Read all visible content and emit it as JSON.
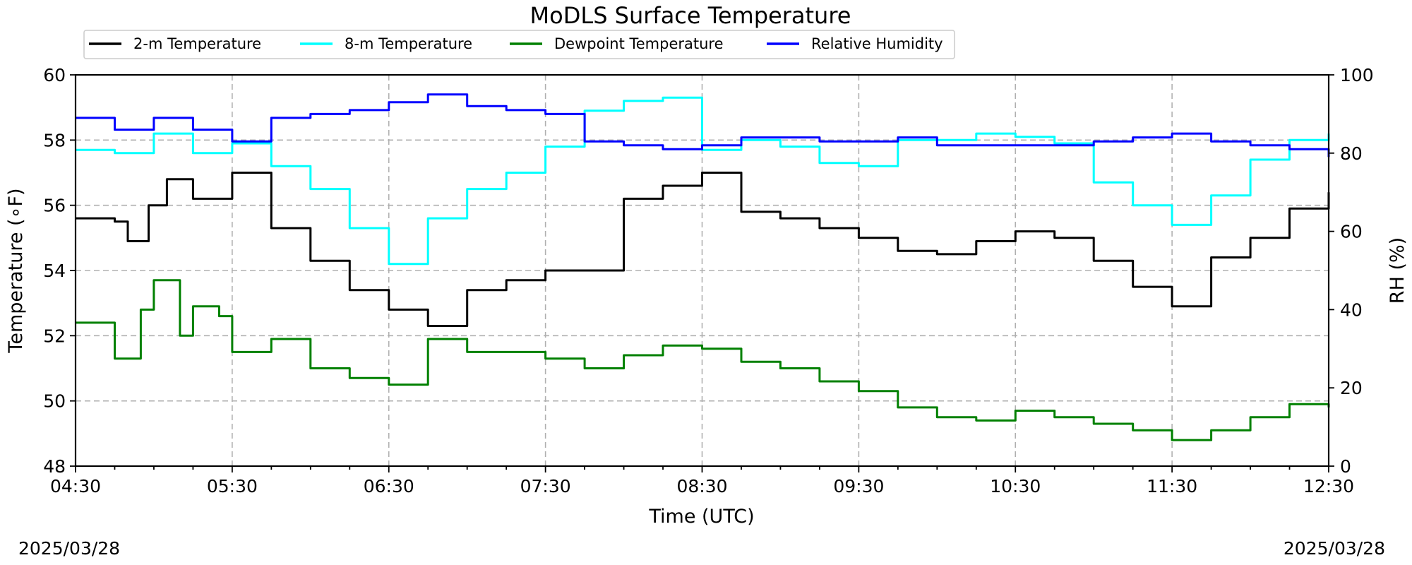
{
  "chart_data": {
    "type": "line",
    "title": "MoDLS Surface Temperature",
    "xlabel": "Time (UTC)",
    "ylabel": "Temperature ($^\\circ$F)",
    "ylabel_display": "Temperature (∘F)",
    "y2label": "RH (%)",
    "ylim": [
      48,
      60
    ],
    "y2lim": [
      0,
      100
    ],
    "xlim": [
      "04:30",
      "12:30"
    ],
    "x_ticks": [
      "04:30",
      "05:30",
      "06:30",
      "07:30",
      "08:30",
      "09:30",
      "10:30",
      "11:30",
      "12:30"
    ],
    "y_ticks": [
      48,
      50,
      52,
      54,
      56,
      58,
      60
    ],
    "y2_ticks": [
      0,
      20,
      40,
      60,
      80,
      100
    ],
    "grid": true,
    "legend_placement": "top, above plot",
    "date_left": "2025/03/28",
    "date_right": "2025/03/28",
    "series": [
      {
        "name": "2-m Temperature",
        "axis": "left",
        "color": "#000000",
        "x": [
          "04:30",
          "04:45",
          "04:50",
          "04:58",
          "05:05",
          "05:15",
          "05:30",
          "05:45",
          "06:00",
          "06:15",
          "06:30",
          "06:45",
          "07:00",
          "07:15",
          "07:30",
          "07:45",
          "08:00",
          "08:15",
          "08:30",
          "08:45",
          "09:00",
          "09:15",
          "09:30",
          "09:45",
          "10:00",
          "10:15",
          "10:30",
          "10:45",
          "11:00",
          "11:15",
          "11:30",
          "11:45",
          "12:00",
          "12:15",
          "12:30"
        ],
        "y": [
          55.6,
          55.5,
          54.9,
          56.0,
          56.8,
          56.2,
          57.0,
          55.3,
          54.3,
          53.4,
          52.8,
          52.3,
          53.4,
          53.7,
          54.0,
          54.0,
          56.2,
          56.6,
          57.0,
          55.8,
          55.6,
          55.3,
          55.0,
          54.6,
          54.5,
          54.9,
          55.2,
          55.0,
          54.3,
          53.5,
          52.9,
          54.4,
          55.0,
          55.9,
          56.4
        ]
      },
      {
        "name": "8-m Temperature",
        "axis": "left",
        "color": "#00ffff",
        "x": [
          "04:30",
          "04:45",
          "05:00",
          "05:15",
          "05:30",
          "05:45",
          "06:00",
          "06:15",
          "06:30",
          "06:45",
          "07:00",
          "07:15",
          "07:30",
          "07:45",
          "08:00",
          "08:15",
          "08:30",
          "08:45",
          "09:00",
          "09:15",
          "09:30",
          "09:45",
          "10:00",
          "10:15",
          "10:30",
          "10:45",
          "11:00",
          "11:15",
          "11:30",
          "11:45",
          "12:00",
          "12:15",
          "12:30"
        ],
        "y": [
          57.7,
          57.6,
          58.2,
          57.6,
          57.9,
          57.2,
          56.5,
          55.3,
          54.2,
          55.6,
          56.5,
          57.0,
          57.8,
          58.9,
          59.2,
          59.3,
          57.7,
          58.0,
          57.8,
          57.3,
          57.2,
          58.0,
          58.0,
          58.2,
          58.1,
          57.9,
          56.7,
          56.0,
          55.4,
          56.3,
          57.4,
          58.0,
          58.2
        ]
      },
      {
        "name": "Dewpoint Temperature",
        "axis": "left",
        "color": "#008000",
        "x": [
          "04:30",
          "04:45",
          "04:55",
          "05:00",
          "05:10",
          "05:15",
          "05:25",
          "05:30",
          "05:45",
          "06:00",
          "06:15",
          "06:30",
          "06:45",
          "07:00",
          "07:15",
          "07:30",
          "07:45",
          "08:00",
          "08:15",
          "08:30",
          "08:45",
          "09:00",
          "09:15",
          "09:30",
          "09:45",
          "10:00",
          "10:15",
          "10:30",
          "10:45",
          "11:00",
          "11:15",
          "11:30",
          "11:45",
          "12:00",
          "12:15",
          "12:30"
        ],
        "y": [
          52.4,
          51.3,
          52.8,
          53.7,
          52.0,
          52.9,
          52.6,
          51.5,
          51.9,
          51.0,
          50.7,
          50.5,
          51.9,
          51.5,
          51.5,
          51.3,
          51.0,
          51.4,
          51.7,
          51.6,
          51.2,
          51.0,
          50.6,
          50.3,
          49.8,
          49.5,
          49.4,
          49.7,
          49.5,
          49.3,
          49.1,
          48.8,
          49.1,
          49.5,
          49.9,
          49.8
        ]
      },
      {
        "name": "Relative Humidity",
        "axis": "right",
        "color": "#0000ff",
        "x": [
          "04:30",
          "04:45",
          "05:00",
          "05:15",
          "05:30",
          "05:45",
          "06:00",
          "06:15",
          "06:30",
          "06:45",
          "07:00",
          "07:15",
          "07:30",
          "07:45",
          "08:00",
          "08:15",
          "08:30",
          "08:45",
          "09:00",
          "09:15",
          "09:30",
          "09:45",
          "10:00",
          "10:15",
          "10:30",
          "10:45",
          "11:00",
          "11:15",
          "11:30",
          "11:45",
          "12:00",
          "12:15",
          "12:30"
        ],
        "y": [
          89,
          86,
          89,
          86,
          83,
          89,
          90,
          91,
          93,
          95,
          92,
          91,
          90,
          83,
          82,
          81,
          82,
          84,
          84,
          83,
          83,
          84,
          82,
          82,
          82,
          82,
          83,
          84,
          85,
          83,
          82,
          81,
          79
        ]
      }
    ]
  }
}
